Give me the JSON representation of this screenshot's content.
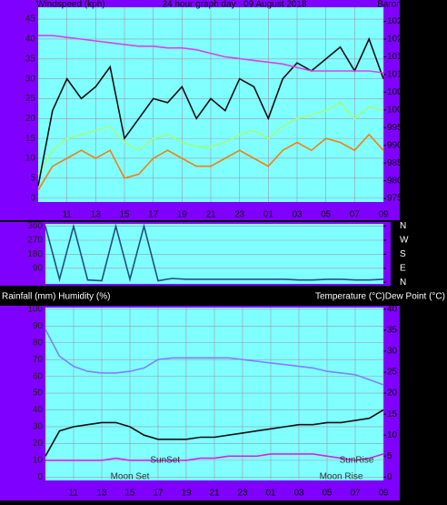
{
  "chart_data": [
    {
      "type": "line",
      "title": "24 hour graph day : 09 August 2018",
      "ylabel": "Windspeed (kph)",
      "y2label": "Barometer (hpa)",
      "x": [
        0,
        1,
        2,
        3,
        4,
        5,
        6,
        7,
        8,
        9,
        10,
        11,
        12,
        13,
        14,
        15,
        16,
        17,
        18,
        19,
        20,
        21,
        22,
        23,
        24
      ],
      "xlim": [
        0,
        24
      ],
      "xticks": [
        {
          "value": 2,
          "label": "11"
        },
        {
          "value": 4,
          "label": "13"
        },
        {
          "value": 6,
          "label": "15"
        },
        {
          "value": 8,
          "label": "17"
        },
        {
          "value": 10,
          "label": "19"
        },
        {
          "value": 12,
          "label": "21"
        },
        {
          "value": 14,
          "label": "23"
        },
        {
          "value": 16,
          "label": "01"
        },
        {
          "value": 18,
          "label": "03"
        },
        {
          "value": 20,
          "label": "05"
        },
        {
          "value": 22,
          "label": "07"
        },
        {
          "value": 24,
          "label": "09"
        }
      ],
      "ylim": [
        -1,
        48
      ],
      "yticks": [
        0,
        5,
        10,
        15,
        20,
        25,
        30,
        35,
        40,
        45
      ],
      "y2lim": [
        974,
        1029
      ],
      "y2ticks": [
        975,
        980,
        985,
        990,
        995,
        1000,
        1005,
        1010,
        1015,
        1020,
        1025
      ],
      "grid": true,
      "series": [
        {
          "color": "#f08010",
          "values": [
            2,
            8,
            10,
            12,
            10,
            12,
            5,
            6,
            10,
            12,
            10,
            8,
            8,
            10,
            12,
            10,
            8,
            12,
            14,
            12,
            15,
            14,
            12,
            16,
            12
          ]
        },
        {
          "color": "#a0ff80",
          "values": [
            6,
            12,
            15,
            16,
            17,
            18,
            14,
            12,
            15,
            16,
            14,
            13,
            13,
            14,
            16,
            17,
            15,
            18,
            20,
            21,
            22,
            24,
            20,
            23,
            22
          ]
        },
        {
          "color": "#101010",
          "values": [
            3,
            22,
            30,
            25,
            28,
            33,
            15,
            20,
            25,
            24,
            28,
            20,
            25,
            22,
            30,
            28,
            20,
            30,
            34,
            32,
            35,
            38,
            32,
            40,
            30
          ]
        },
        {
          "color": "#e040e0",
          "axis": "y2",
          "values": [
            1021,
            1021,
            1020.5,
            1020,
            1019.5,
            1019,
            1018.5,
            1018,
            1018,
            1017.5,
            1017.5,
            1017,
            1016,
            1015,
            1014.5,
            1014,
            1013.5,
            1013,
            1012,
            1011,
            1011,
            1011,
            1011,
            1011,
            1010.5
          ]
        }
      ]
    },
    {
      "type": "line",
      "x": [
        0,
        1,
        2,
        3,
        4,
        5,
        6,
        7,
        8,
        9,
        10,
        11,
        12,
        13,
        14,
        15,
        16,
        17,
        18,
        19,
        20,
        21,
        22,
        23,
        24
      ],
      "xlim": [
        0,
        24
      ],
      "ylim": [
        -10,
        375
      ],
      "yticks": [
        90,
        180,
        270,
        360
      ],
      "y2lim": [
        -10,
        375
      ],
      "y2ticks": [
        {
          "value": 0,
          "label": "N"
        },
        {
          "value": 90,
          "label": "E"
        },
        {
          "value": 180,
          "label": "S"
        },
        {
          "value": 270,
          "label": "W"
        },
        {
          "value": 360,
          "label": "N"
        }
      ],
      "grid": true,
      "series": [
        {
          "color": "#1f5080",
          "values": [
            360,
            20,
            360,
            15,
            10,
            360,
            20,
            360,
            10,
            25,
            20,
            20,
            20,
            20,
            20,
            20,
            20,
            20,
            15,
            15,
            20,
            20,
            15,
            15,
            20
          ]
        }
      ]
    },
    {
      "type": "line",
      "ylabel": "Rainfall (mm)  Humidity (%)",
      "y2label": "Temperature (°C)Dew Point (°C)",
      "x": [
        0,
        1,
        2,
        3,
        4,
        5,
        6,
        7,
        8,
        9,
        10,
        11,
        12,
        13,
        14,
        15,
        16,
        17,
        18,
        19,
        20,
        21,
        22,
        23,
        24
      ],
      "xlim": [
        0,
        24
      ],
      "xticks": [
        {
          "value": 2,
          "label": "11"
        },
        {
          "value": 4,
          "label": "13"
        },
        {
          "value": 6,
          "label": "15"
        },
        {
          "value": 8,
          "label": "17"
        },
        {
          "value": 10,
          "label": "19"
        },
        {
          "value": 12,
          "label": "21"
        },
        {
          "value": 14,
          "label": "23"
        },
        {
          "value": 16,
          "label": "01"
        },
        {
          "value": 18,
          "label": "03"
        },
        {
          "value": 20,
          "label": "05"
        },
        {
          "value": 22,
          "label": "07"
        },
        {
          "value": 24,
          "label": "09"
        }
      ],
      "ylim": [
        -2,
        101
      ],
      "yticks": [
        0,
        10,
        20,
        30,
        40,
        50,
        60,
        70,
        80,
        90,
        100
      ],
      "y2lim": [
        -0.8,
        40.4
      ],
      "y2ticks": [
        0,
        5,
        10,
        15,
        20,
        25,
        30,
        35,
        40
      ],
      "grid": true,
      "series": [
        {
          "color": "#8080ff",
          "values": [
            88,
            72,
            66,
            63,
            62,
            62,
            63,
            65,
            70,
            71,
            71,
            71,
            71,
            71,
            70,
            69,
            68,
            67,
            66,
            65,
            63,
            62,
            61,
            58,
            55
          ]
        },
        {
          "color": "#101010",
          "axis": "y2",
          "values": [
            5,
            11,
            12,
            12.5,
            13,
            13,
            12,
            10,
            9,
            9,
            9,
            9.5,
            9.5,
            10,
            10.5,
            11,
            11.5,
            12,
            12.5,
            12.5,
            13,
            13,
            13.5,
            14,
            16
          ]
        },
        {
          "color": "#e020e0",
          "axis": "y2",
          "values": [
            4,
            4,
            4,
            4,
            4,
            4.5,
            4,
            4,
            4,
            4,
            4,
            4.5,
            4.5,
            5,
            5,
            5,
            5.5,
            5.5,
            5.5,
            5.5,
            5,
            4.5,
            4,
            4.5,
            5.5
          ]
        }
      ],
      "annotations": [
        {
          "text": "SunSet",
          "x": 8.5
        },
        {
          "text": "SunRise",
          "x": 22.1
        },
        {
          "text": "Moon Set",
          "x": 6
        },
        {
          "text": "Moon Rise",
          "x": 21
        }
      ]
    }
  ]
}
